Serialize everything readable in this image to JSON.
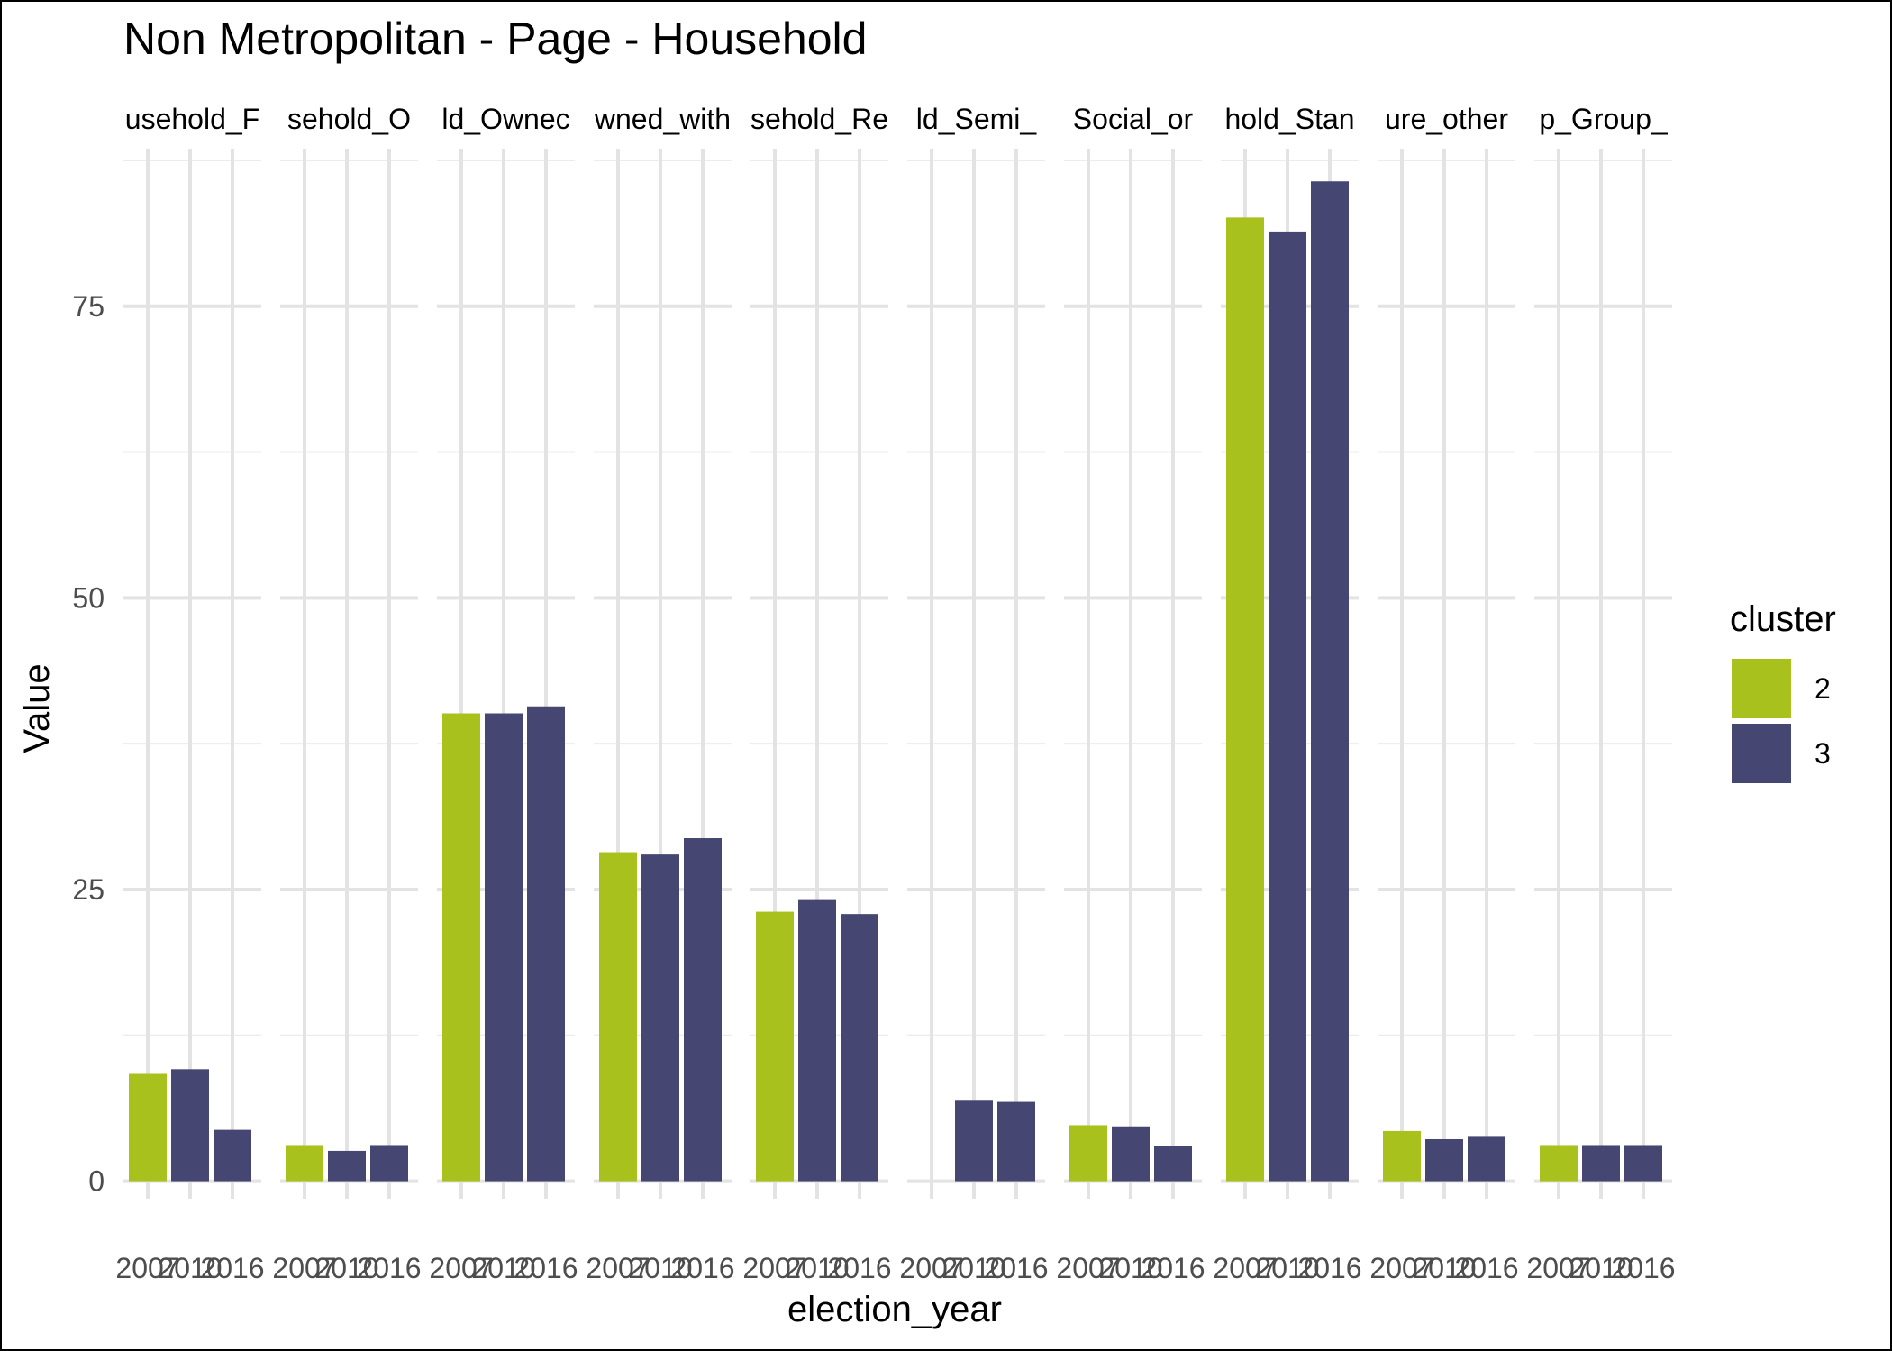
{
  "chart_data": {
    "type": "bar",
    "title": "Non Metropolitan - Page - Household",
    "xlabel": "election_year",
    "ylabel": "Value",
    "ylim": [
      -1.5,
      88.5
    ],
    "yticks": [
      0,
      25,
      50,
      75
    ],
    "grid": true,
    "legend": {
      "title": "cluster",
      "placement": "right",
      "entries": [
        {
          "label": "2",
          "color": "#a8c11c"
        },
        {
          "label": "3",
          "color": "#464673"
        }
      ]
    },
    "x_tick_labels": [
      "2007",
      "2010",
      "2016"
    ],
    "facets": [
      {
        "strip": "usehold_F",
        "bars": [
          {
            "x": "2007",
            "cluster": "2",
            "value": 9.2
          },
          {
            "x": "2010",
            "cluster": "3",
            "value": 9.6
          },
          {
            "x": "2016",
            "cluster": "3",
            "value": 4.4
          }
        ]
      },
      {
        "strip": "sehold_O",
        "bars": [
          {
            "x": "2007",
            "cluster": "2",
            "value": 3.1
          },
          {
            "x": "2010",
            "cluster": "3",
            "value": 2.6
          },
          {
            "x": "2016",
            "cluster": "3",
            "value": 3.1
          }
        ]
      },
      {
        "strip": "ld_Ownec",
        "bars": [
          {
            "x": "2007",
            "cluster": "2",
            "value": 40.1
          },
          {
            "x": "2010",
            "cluster": "3",
            "value": 40.1
          },
          {
            "x": "2016",
            "cluster": "3",
            "value": 40.7
          }
        ]
      },
      {
        "strip": "wned_with",
        "bars": [
          {
            "x": "2007",
            "cluster": "2",
            "value": 28.2
          },
          {
            "x": "2010",
            "cluster": "3",
            "value": 28.0
          },
          {
            "x": "2016",
            "cluster": "3",
            "value": 29.4
          }
        ]
      },
      {
        "strip": "sehold_Re",
        "bars": [
          {
            "x": "2007",
            "cluster": "2",
            "value": 23.1
          },
          {
            "x": "2010",
            "cluster": "3",
            "value": 24.1
          },
          {
            "x": "2016",
            "cluster": "3",
            "value": 22.9
          }
        ]
      },
      {
        "strip": "ld_Semi_",
        "bars": [
          {
            "x": "2010",
            "cluster": "3",
            "value": 6.9
          },
          {
            "x": "2016",
            "cluster": "3",
            "value": 6.8
          }
        ]
      },
      {
        "strip": "Social_or",
        "bars": [
          {
            "x": "2007",
            "cluster": "2",
            "value": 4.8
          },
          {
            "x": "2010",
            "cluster": "3",
            "value": 4.7
          },
          {
            "x": "2016",
            "cluster": "3",
            "value": 3.0
          }
        ]
      },
      {
        "strip": "hold_Stan",
        "bars": [
          {
            "x": "2007",
            "cluster": "2",
            "value": 82.6
          },
          {
            "x": "2010",
            "cluster": "3",
            "value": 81.4
          },
          {
            "x": "2016",
            "cluster": "3",
            "value": 85.7
          }
        ]
      },
      {
        "strip": "ure_other",
        "bars": [
          {
            "x": "2007",
            "cluster": "2",
            "value": 4.3
          },
          {
            "x": "2010",
            "cluster": "3",
            "value": 3.6
          },
          {
            "x": "2016",
            "cluster": "3",
            "value": 3.8
          }
        ]
      },
      {
        "strip": "p_Group_",
        "bars": [
          {
            "x": "2007",
            "cluster": "2",
            "value": 3.1
          },
          {
            "x": "2010",
            "cluster": "3",
            "value": 3.1
          },
          {
            "x": "2016",
            "cluster": "3",
            "value": 3.1
          }
        ]
      }
    ]
  }
}
